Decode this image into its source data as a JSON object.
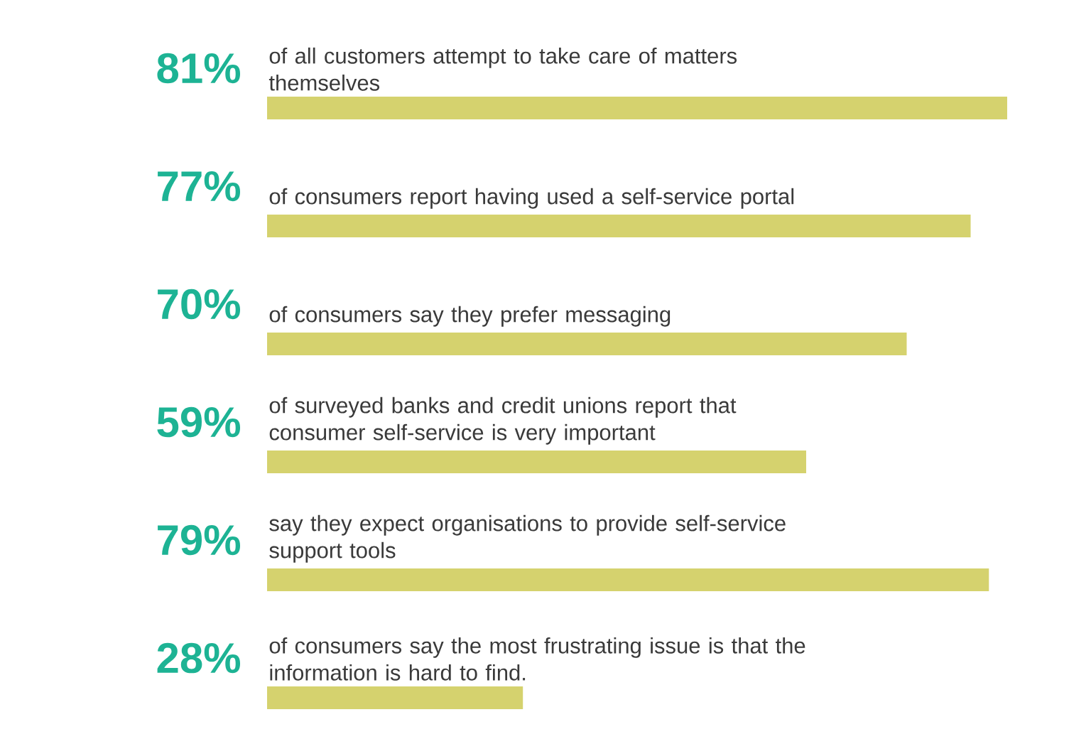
{
  "chart_data": {
    "type": "bar",
    "orientation": "horizontal",
    "categories": [
      "of all customers attempt to take care of matters themselves",
      "of consumers report having used a self-service portal",
      "of consumers say they prefer messaging",
      "of surveyed banks and credit unions report that consumer self-service is very important",
      "say they expect organisations to provide self-service support tools",
      "of consumers say the most frustrating issue is that the information is hard to find."
    ],
    "values": [
      81,
      77,
      70,
      59,
      79,
      28
    ],
    "value_labels": [
      "81%",
      "77%",
      "70%",
      "59%",
      "79%",
      "28%"
    ],
    "color": "#d5d26e"
  }
}
